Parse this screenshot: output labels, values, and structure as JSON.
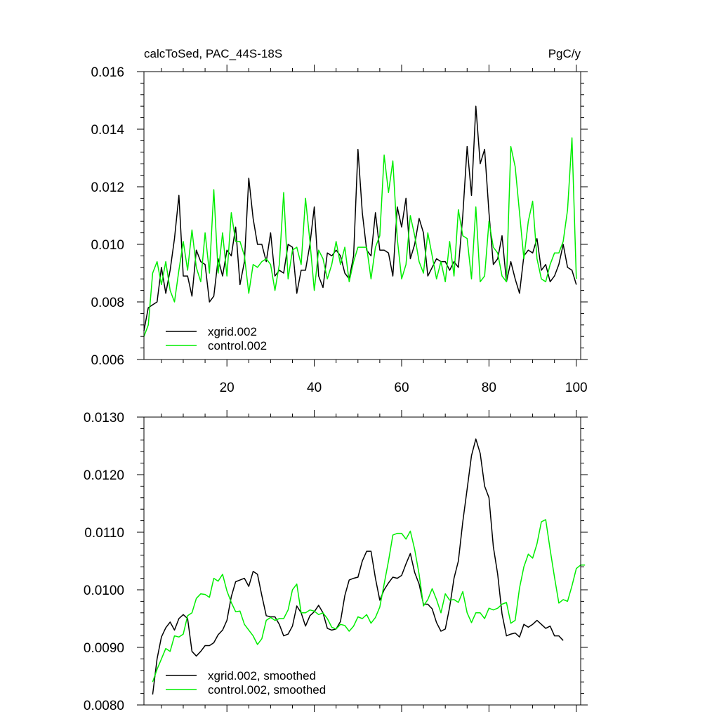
{
  "chart_data": [
    {
      "type": "line",
      "title_left": "calcToSed, PAC_44S-18S",
      "title_right": "PgC/y",
      "xlim": [
        1,
        101
      ],
      "ylim": [
        0.006,
        0.016
      ],
      "xticks": [
        20,
        40,
        60,
        80,
        100
      ],
      "yticks": [
        0.006,
        0.008,
        0.01,
        0.012,
        0.014,
        0.016
      ],
      "ytick_labels": [
        "0.006",
        "0.008",
        "0.010",
        "0.012",
        "0.014",
        "0.016"
      ],
      "xtick_labels": [
        "20",
        "40",
        "60",
        "80",
        "100"
      ],
      "legend": [
        "xgrid.002",
        "control.002"
      ],
      "colors": [
        "#000000",
        "#00ee00"
      ],
      "x_start": 1,
      "series": [
        {
          "name": "xgrid.002",
          "values": [
            0.007,
            0.0078,
            0.0079,
            0.008,
            0.0092,
            0.0083,
            0.0091,
            0.0102,
            0.0117,
            0.0089,
            0.0089,
            0.0082,
            0.0098,
            0.0094,
            0.0093,
            0.008,
            0.0082,
            0.0095,
            0.0089,
            0.0098,
            0.0096,
            0.0106,
            0.0086,
            0.0094,
            0.0123,
            0.0109,
            0.01,
            0.01,
            0.0094,
            0.0104,
            0.0089,
            0.0091,
            0.009,
            0.01,
            0.0099,
            0.0083,
            0.0091,
            0.0091,
            0.01,
            0.0113,
            0.0089,
            0.0085,
            0.0097,
            0.0096,
            0.0098,
            0.0096,
            0.009,
            0.0088,
            0.0096,
            0.0133,
            0.0111,
            0.0098,
            0.0096,
            0.0111,
            0.0098,
            0.0098,
            0.0097,
            0.0089,
            0.0113,
            0.0106,
            0.0116,
            0.0095,
            0.01,
            0.0109,
            0.0104,
            0.0089,
            0.0092,
            0.0095,
            0.0094,
            0.0094,
            0.0091,
            0.0094,
            0.0092,
            0.011,
            0.0134,
            0.0117,
            0.0148,
            0.0128,
            0.0133,
            0.0111,
            0.0093,
            0.0095,
            0.0103,
            0.0087,
            0.0094,
            0.0088,
            0.0083,
            0.0096,
            0.0098,
            0.0097,
            0.0102,
            0.0091,
            0.0093,
            0.0087,
            0.0089,
            0.0093,
            0.01,
            0.0092,
            0.0091,
            0.0086
          ]
        },
        {
          "name": "control.002",
          "values": [
            0.0068,
            0.0072,
            0.009,
            0.0094,
            0.0086,
            0.0094,
            0.0084,
            0.008,
            0.0091,
            0.0101,
            0.0091,
            0.0105,
            0.0092,
            0.0087,
            0.0104,
            0.009,
            0.0119,
            0.009,
            0.0104,
            0.0089,
            0.0111,
            0.0101,
            0.0101,
            0.0096,
            0.0083,
            0.0093,
            0.0092,
            0.0094,
            0.0095,
            0.0093,
            0.0084,
            0.0093,
            0.0118,
            0.0088,
            0.0098,
            0.0099,
            0.0093,
            0.0116,
            0.0101,
            0.0084,
            0.0098,
            0.0095,
            0.0088,
            0.0093,
            0.0101,
            0.0093,
            0.0099,
            0.0087,
            0.0094,
            0.0099,
            0.0099,
            0.0099,
            0.0088,
            0.0099,
            0.0103,
            0.0131,
            0.0118,
            0.0129,
            0.0102,
            0.0088,
            0.0093,
            0.011,
            0.0103,
            0.0094,
            0.009,
            0.0104,
            0.0096,
            0.0088,
            0.0094,
            0.0087,
            0.0101,
            0.0089,
            0.0112,
            0.0103,
            0.0102,
            0.0088,
            0.0113,
            0.0087,
            0.0089,
            0.0108,
            0.0099,
            0.0097,
            0.0089,
            0.0087,
            0.0134,
            0.0127,
            0.0111,
            0.0095,
            0.0108,
            0.0115,
            0.0095,
            0.0088,
            0.0087,
            0.0093,
            0.0097,
            0.0097,
            0.0101,
            0.0112,
            0.0137,
            0.0088
          ]
        }
      ]
    },
    {
      "type": "line",
      "xlim": [
        1,
        101
      ],
      "ylim": [
        0.008,
        0.013
      ],
      "xticks": [
        20,
        40,
        60,
        80,
        100
      ],
      "yticks": [
        0.008,
        0.009,
        0.01,
        0.011,
        0.012,
        0.013
      ],
      "ytick_labels": [
        "0.0080",
        "0.0090",
        "0.0100",
        "0.0110",
        "0.0120",
        "0.0130"
      ],
      "legend": [
        "xgrid.002, smoothed",
        "control.002, smoothed"
      ],
      "colors": [
        "#000000",
        "#00ee00"
      ],
      "x_start": 3,
      "series": [
        {
          "name": "xgrid.002, smoothed",
          "values": [
            0.00818,
            0.0088,
            0.00918,
            0.00934,
            0.00944,
            0.0093,
            0.0095,
            0.00957,
            0.0095,
            0.00893,
            0.00885,
            0.00893,
            0.00903,
            0.00903,
            0.00908,
            0.00922,
            0.0093,
            0.00947,
            0.00988,
            0.01014,
            0.01017,
            0.0102,
            0.01006,
            0.01032,
            0.01027,
            0.0099,
            0.00955,
            0.00953,
            0.00953,
            0.0094,
            0.0092,
            0.00923,
            0.00937,
            0.00972,
            0.0096,
            0.00937,
            0.00955,
            0.00962,
            0.00973,
            0.0096,
            0.00933,
            0.0093,
            0.00932,
            0.00945,
            0.0099,
            0.01017,
            0.0102,
            0.01022,
            0.0105,
            0.01067,
            0.01067,
            0.0102,
            0.00982,
            0.01,
            0.01012,
            0.01022,
            0.0102,
            0.01025,
            0.01045,
            0.01063,
            0.0103,
            0.0101,
            0.00975,
            0.00975,
            0.00967,
            0.00943,
            0.00928,
            0.00932,
            0.0097,
            0.0102,
            0.0105,
            0.01118,
            0.01175,
            0.01233,
            0.01262,
            0.01237,
            0.0118,
            0.0116,
            0.01075,
            0.01027,
            0.00958,
            0.0092,
            0.00923,
            0.00925,
            0.00918,
            0.0094,
            0.00935,
            0.0094,
            0.00947,
            0.0094,
            0.00933,
            0.00937,
            0.0092,
            0.0092,
            0.00912
          ]
        },
        {
          "name": "control.002, smoothed",
          "values": [
            0.0084,
            0.00862,
            0.0088,
            0.00898,
            0.00893,
            0.0092,
            0.00918,
            0.00923,
            0.00955,
            0.0096,
            0.00985,
            0.00993,
            0.00992,
            0.00987,
            0.0102,
            0.01015,
            0.01027,
            0.00998,
            0.00978,
            0.00962,
            0.00963,
            0.0094,
            0.0093,
            0.0092,
            0.00905,
            0.00915,
            0.00947,
            0.00952,
            0.00947,
            0.0095,
            0.0095,
            0.00965,
            0.01,
            0.0101,
            0.0096,
            0.0096,
            0.00965,
            0.00963,
            0.00957,
            0.0096,
            0.0095,
            0.00935,
            0.00932,
            0.0094,
            0.00938,
            0.00928,
            0.00937,
            0.00953,
            0.0095,
            0.00957,
            0.00942,
            0.00952,
            0.0097,
            0.0101,
            0.0105,
            0.01095,
            0.01098,
            0.01098,
            0.01088,
            0.01102,
            0.0107,
            0.01027,
            0.00972,
            0.00983,
            0.01002,
            0.00983,
            0.0096,
            0.00993,
            0.00982,
            0.00983,
            0.00978,
            0.00997,
            0.0096,
            0.00943,
            0.0096,
            0.0096,
            0.0095,
            0.00968,
            0.00965,
            0.00968,
            0.00975,
            0.00978,
            0.00942,
            0.00947,
            0.01003,
            0.0104,
            0.01062,
            0.01055,
            0.0108,
            0.01118,
            0.01122,
            0.0107,
            0.01022,
            0.00977,
            0.00983,
            0.0098,
            0.01007,
            0.01037,
            0.01043,
            0.01043
          ]
        }
      ]
    }
  ]
}
